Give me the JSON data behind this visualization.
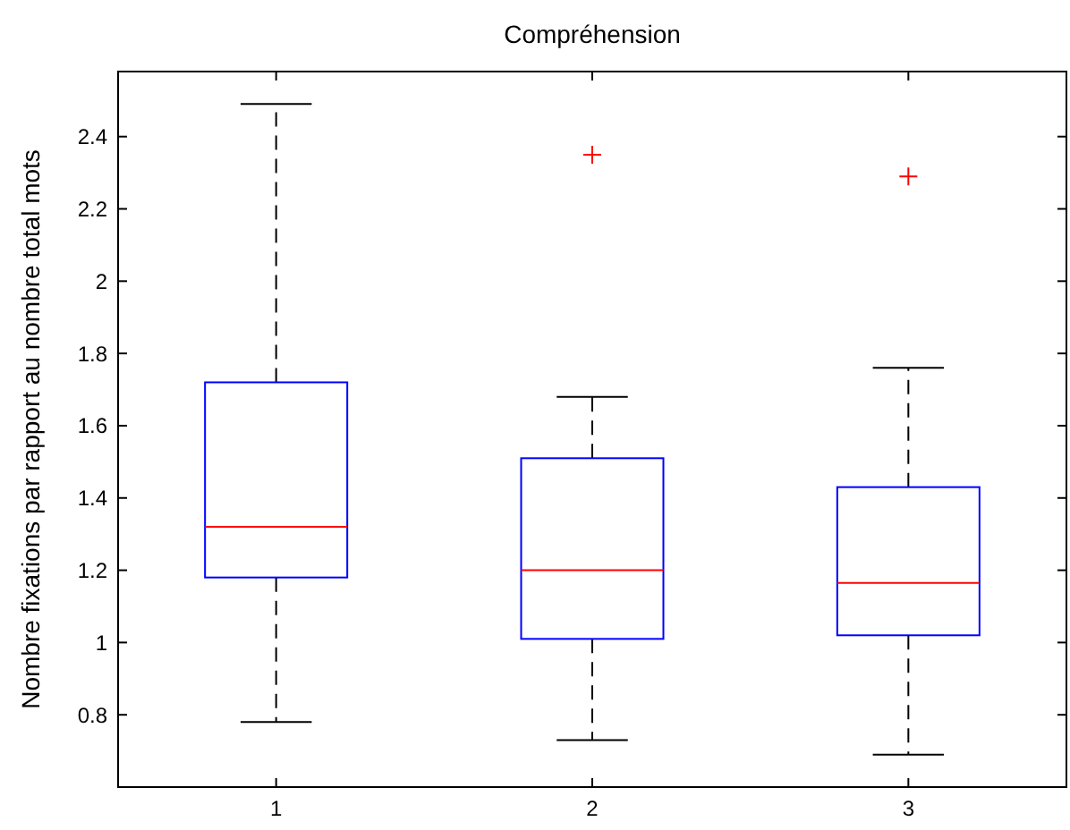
{
  "chart_data": {
    "type": "box",
    "title": "Compréhension",
    "ylabel": "Nombre fixations par rapport au nombre total mots",
    "categories": [
      "1",
      "2",
      "3"
    ],
    "boxes": [
      {
        "low": 0.78,
        "q1": 1.18,
        "median": 1.32,
        "q3": 1.72,
        "high": 2.49
      },
      {
        "low": 0.73,
        "q1": 1.01,
        "median": 1.2,
        "q3": 1.51,
        "high": 1.68,
        "outliers": [
          2.35
        ]
      },
      {
        "low": 0.69,
        "q1": 1.02,
        "median": 1.165,
        "q3": 1.43,
        "high": 1.76,
        "outliers": [
          2.29
        ]
      }
    ],
    "ylim": [
      0.6,
      2.58
    ],
    "yticks": [
      0.8,
      1,
      1.2,
      1.4,
      1.6,
      1.8,
      2,
      2.2,
      2.4
    ],
    "grid": false
  }
}
